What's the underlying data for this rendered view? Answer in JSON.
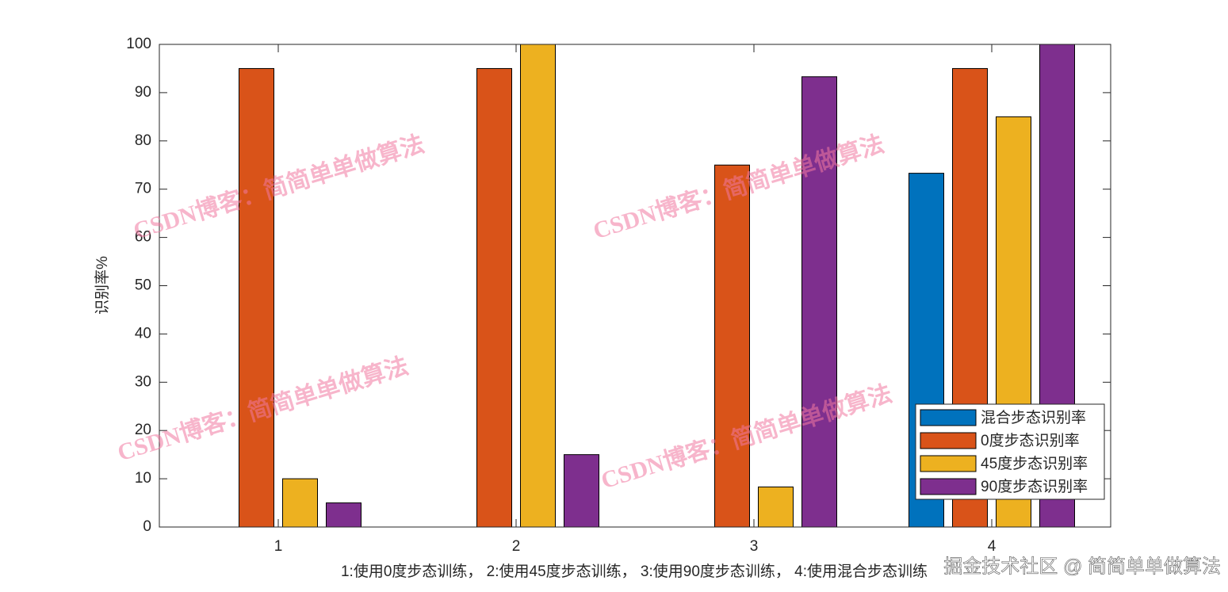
{
  "chart_data": {
    "type": "bar",
    "ylabel": "识别率%",
    "xlabel": "1:使用0度步态训练，   2:使用45度步态训练，   3:使用90度步态训练，   4:使用混合步态训练",
    "categories": [
      "1",
      "2",
      "3",
      "4"
    ],
    "series": [
      {
        "name": "混合步态识别率",
        "color": "#0072bd",
        "values": [
          0,
          0,
          0,
          73.3
        ]
      },
      {
        "name": "0度步态识别率",
        "color": "#d95319",
        "values": [
          95,
          95,
          75,
          95
        ]
      },
      {
        "name": "45度步态识别率",
        "color": "#edb120",
        "values": [
          10,
          100,
          8.3,
          85
        ]
      },
      {
        "name": "90度步态识别率",
        "color": "#7e2f8e",
        "values": [
          5,
          15,
          93.3,
          100
        ]
      }
    ],
    "ylim": [
      0,
      100
    ],
    "yticks": [
      0,
      10,
      20,
      30,
      40,
      50,
      60,
      70,
      80,
      90,
      100
    ],
    "grid": false,
    "legend": "lower right",
    "watermark": "CSDN博客：简简单单做算法",
    "footer": "掘金技术社区 @ 简简单单做算法"
  }
}
